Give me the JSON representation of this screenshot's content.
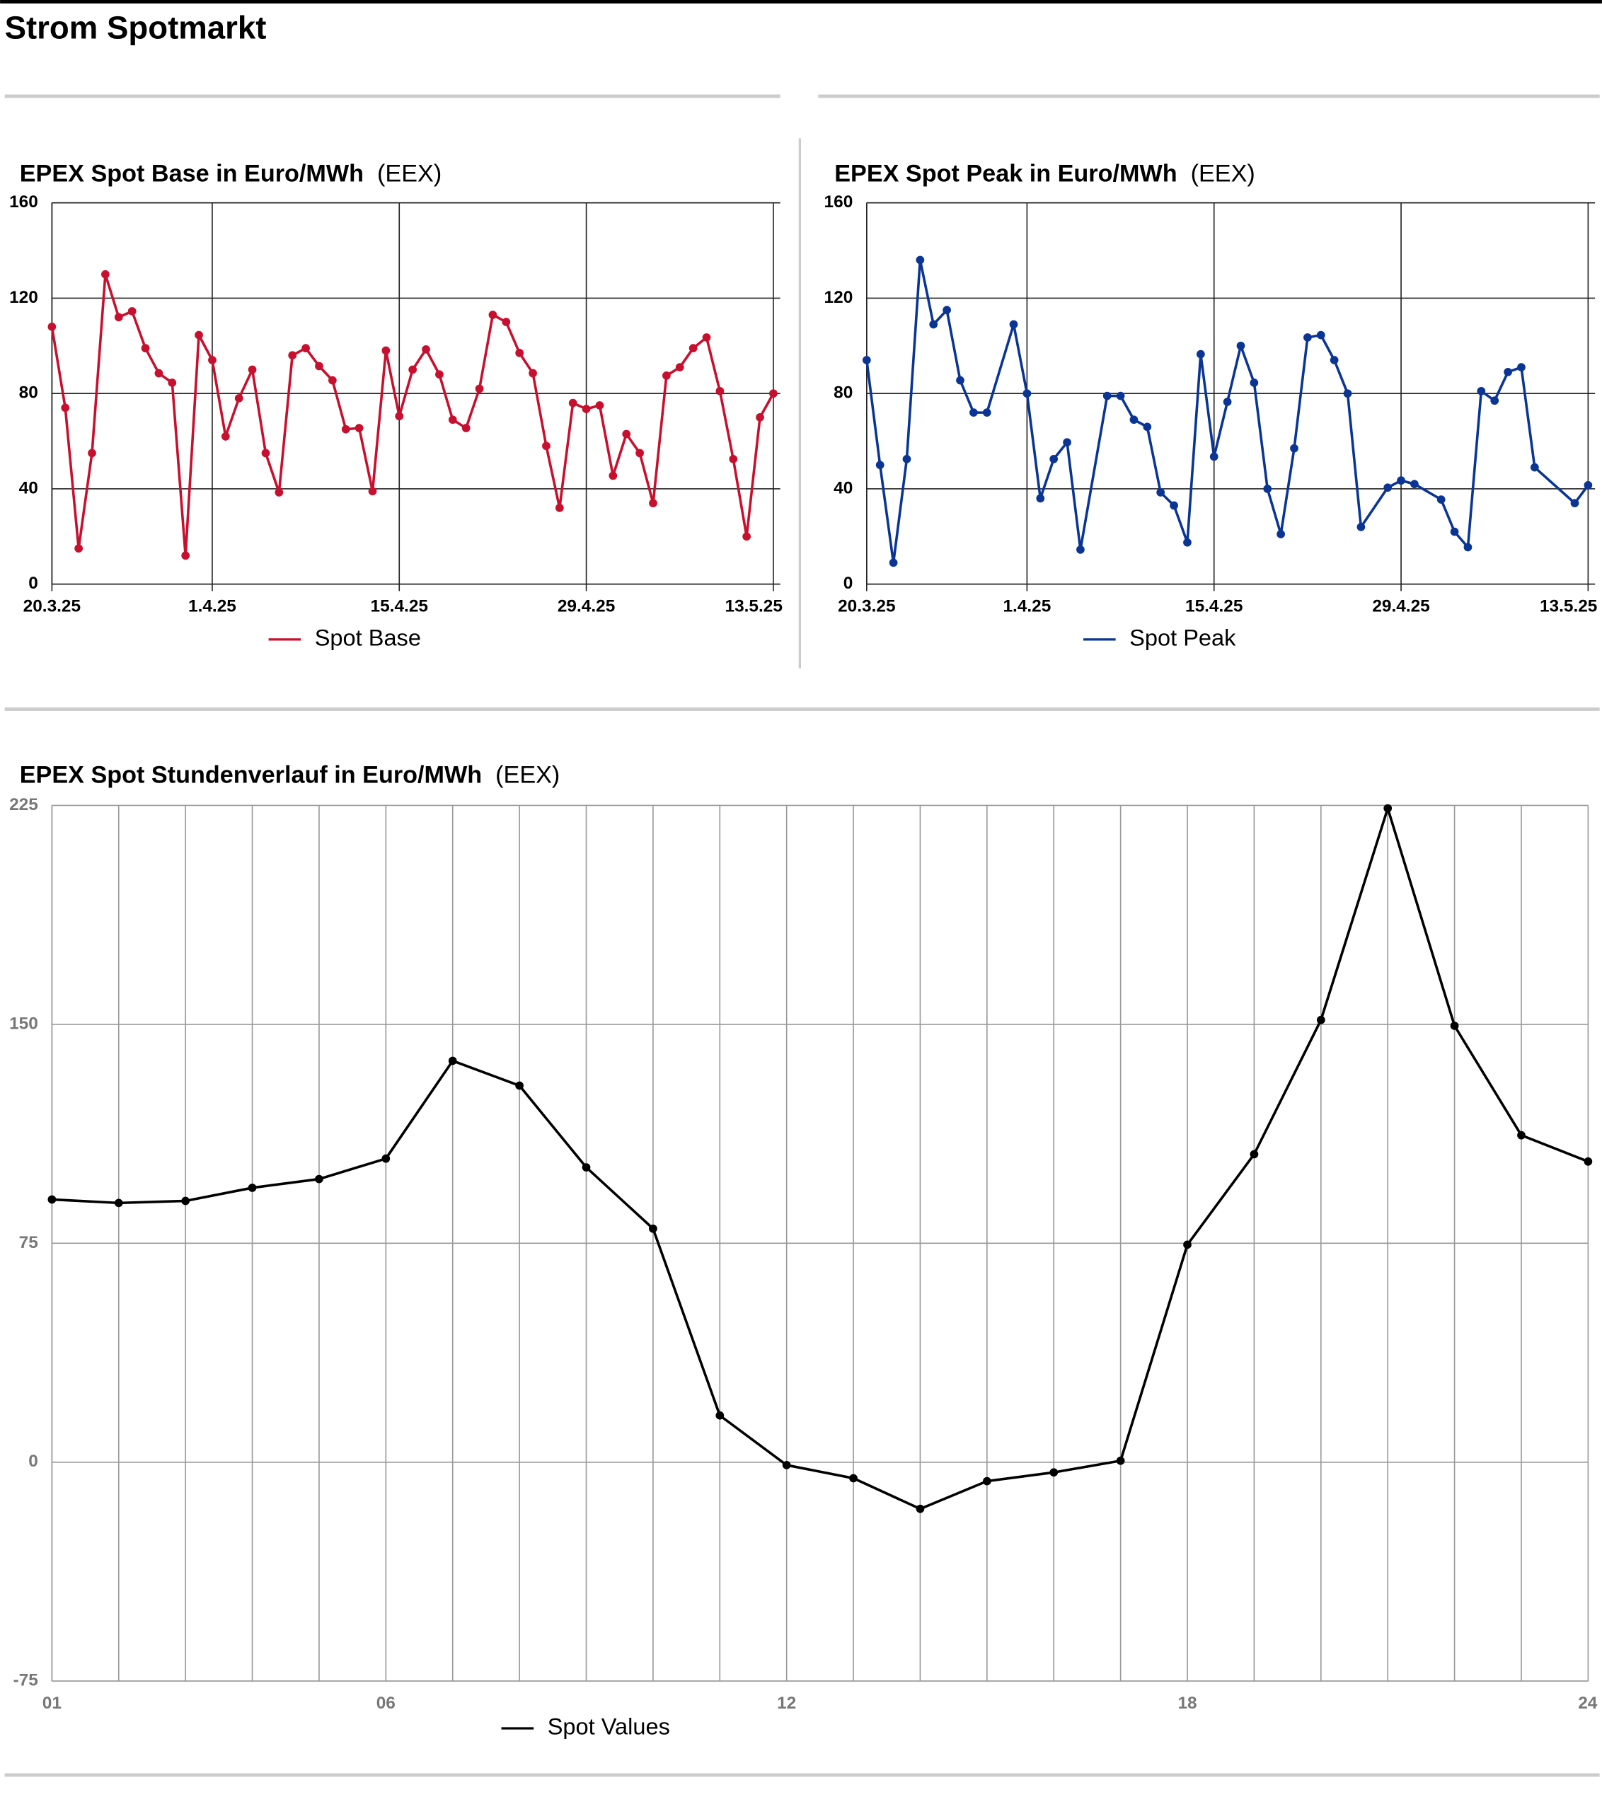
{
  "title": "Strom Spotmarkt",
  "chart_data": [
    {
      "type": "line",
      "title": "EPEX Spot Base in Euro/MWh",
      "source": "(EEX)",
      "x": [
        "2025-03-20",
        "2025-03-21",
        "2025-03-22",
        "2025-03-23",
        "2025-03-24",
        "2025-03-25",
        "2025-03-26",
        "2025-03-27",
        "2025-03-28",
        "2025-03-29",
        "2025-03-30",
        "2025-03-31",
        "2025-04-01",
        "2025-04-02",
        "2025-04-03",
        "2025-04-04",
        "2025-04-05",
        "2025-04-06",
        "2025-04-07",
        "2025-04-08",
        "2025-04-09",
        "2025-04-10",
        "2025-04-11",
        "2025-04-12",
        "2025-04-13",
        "2025-04-14",
        "2025-04-15",
        "2025-04-16",
        "2025-04-17",
        "2025-04-18",
        "2025-04-19",
        "2025-04-20",
        "2025-04-21",
        "2025-04-22",
        "2025-04-23",
        "2025-04-24",
        "2025-04-25",
        "2025-04-26",
        "2025-04-27",
        "2025-04-28",
        "2025-04-29",
        "2025-04-30",
        "2025-05-01",
        "2025-05-02",
        "2025-05-03",
        "2025-05-04",
        "2025-05-05",
        "2025-05-06",
        "2025-05-07",
        "2025-05-08",
        "2025-05-09",
        "2025-05-10",
        "2025-05-11",
        "2025-05-12",
        "2025-05-13"
      ],
      "series": [
        {
          "name": "Spot Base",
          "color": "#c8102e",
          "values": [
            108,
            74,
            15,
            55,
            130,
            112,
            114.5,
            99,
            88.5,
            84.5,
            12,
            104.5,
            94,
            62,
            78,
            90,
            55,
            38.5,
            96,
            99,
            91.5,
            85.5,
            65,
            65.5,
            39,
            98,
            70.5,
            90,
            98.5,
            88,
            69,
            65.5,
            82,
            113,
            110,
            97,
            88.5,
            58,
            32,
            76,
            73.5,
            75,
            45.5,
            63,
            55,
            34,
            87.5,
            91,
            99,
            103.5,
            81,
            52.5,
            20,
            70,
            80
          ]
        }
      ],
      "xlim": [
        "2025-03-20",
        "2025-05-13"
      ],
      "xticks": [
        {
          "value": "2025-03-20",
          "label": "20.3.25"
        },
        {
          "value": "2025-04-01",
          "label": "1.4.25"
        },
        {
          "value": "2025-04-15",
          "label": "15.4.25"
        },
        {
          "value": "2025-04-29",
          "label": "29.4.25"
        },
        {
          "value": "2025-05-13",
          "label": "13.5.25"
        }
      ],
      "ylim": [
        0,
        160
      ],
      "yticks": [
        0,
        40,
        80,
        120,
        160
      ],
      "grid": true
    },
    {
      "type": "line",
      "title": "EPEX Spot Peak in Euro/MWh",
      "source": "(EEX)",
      "x": [
        "2025-03-20",
        "2025-03-21",
        "2025-03-22",
        "2025-03-23",
        "2025-03-24",
        "2025-03-25",
        "2025-03-26",
        "2025-03-27",
        "2025-03-28",
        "2025-03-29",
        "2025-03-31",
        "2025-04-01",
        "2025-04-02",
        "2025-04-03",
        "2025-04-04",
        "2025-04-05",
        "2025-04-07",
        "2025-04-08",
        "2025-04-09",
        "2025-04-10",
        "2025-04-11",
        "2025-04-12",
        "2025-04-13",
        "2025-04-14",
        "2025-04-15",
        "2025-04-16",
        "2025-04-17",
        "2025-04-18",
        "2025-04-19",
        "2025-04-20",
        "2025-04-21",
        "2025-04-22",
        "2025-04-23",
        "2025-04-24",
        "2025-04-25",
        "2025-04-26",
        "2025-04-28",
        "2025-04-29",
        "2025-04-30",
        "2025-05-02",
        "2025-05-03",
        "2025-05-04",
        "2025-05-05",
        "2025-05-06",
        "2025-05-07",
        "2025-05-08",
        "2025-05-09",
        "2025-05-12",
        "2025-05-13"
      ],
      "series": [
        {
          "name": "Spot Peak",
          "color": "#0a3595",
          "values": [
            94,
            50,
            9,
            52.5,
            136,
            109,
            115,
            85.5,
            72,
            72,
            109,
            80,
            36,
            52.5,
            59.5,
            14.5,
            79,
            79,
            69,
            66,
            38.5,
            33,
            17.5,
            96.5,
            53.5,
            76.5,
            100,
            84.5,
            40,
            21,
            57,
            103.5,
            104.5,
            94,
            80,
            24,
            40.5,
            43.5,
            42,
            35.5,
            22,
            15.5,
            81,
            77,
            89,
            91,
            49,
            34,
            41.5
          ]
        }
      ],
      "xlim": [
        "2025-03-20",
        "2025-05-13"
      ],
      "xticks": [
        {
          "value": "2025-03-20",
          "label": "20.3.25"
        },
        {
          "value": "2025-04-01",
          "label": "1.4.25"
        },
        {
          "value": "2025-04-15",
          "label": "15.4.25"
        },
        {
          "value": "2025-04-29",
          "label": "29.4.25"
        },
        {
          "value": "2025-05-13",
          "label": "13.5.25"
        }
      ],
      "ylim": [
        0,
        160
      ],
      "yticks": [
        0,
        40,
        80,
        120,
        160
      ],
      "grid": true
    },
    {
      "type": "line",
      "title": "EPEX Spot Stundenverlauf in Euro/MWh",
      "source": "(EEX)",
      "x": [
        1,
        2,
        3,
        4,
        5,
        6,
        7,
        8,
        9,
        10,
        11,
        12,
        13,
        14,
        15,
        16,
        17,
        18,
        19,
        20,
        21,
        22,
        23,
        24
      ],
      "series": [
        {
          "name": "Spot Values",
          "color": "#000000",
          "values": [
            90,
            88.8,
            89.5,
            94,
            97,
            104,
            137.5,
            129,
            101,
            80,
            16,
            -1,
            -5.5,
            -16,
            -6.5,
            -3.5,
            0.5,
            74.5,
            105.5,
            151.5,
            224,
            149.5,
            112,
            103
          ]
        }
      ],
      "xlim": [
        1,
        24
      ],
      "xticks": [
        {
          "value": 1,
          "label": "01"
        },
        {
          "value": 6,
          "label": "06"
        },
        12,
        18,
        24
      ],
      "ylim": [
        -75,
        225
      ],
      "yticks": [
        -75,
        0,
        75,
        150,
        225
      ],
      "grid": true
    }
  ]
}
